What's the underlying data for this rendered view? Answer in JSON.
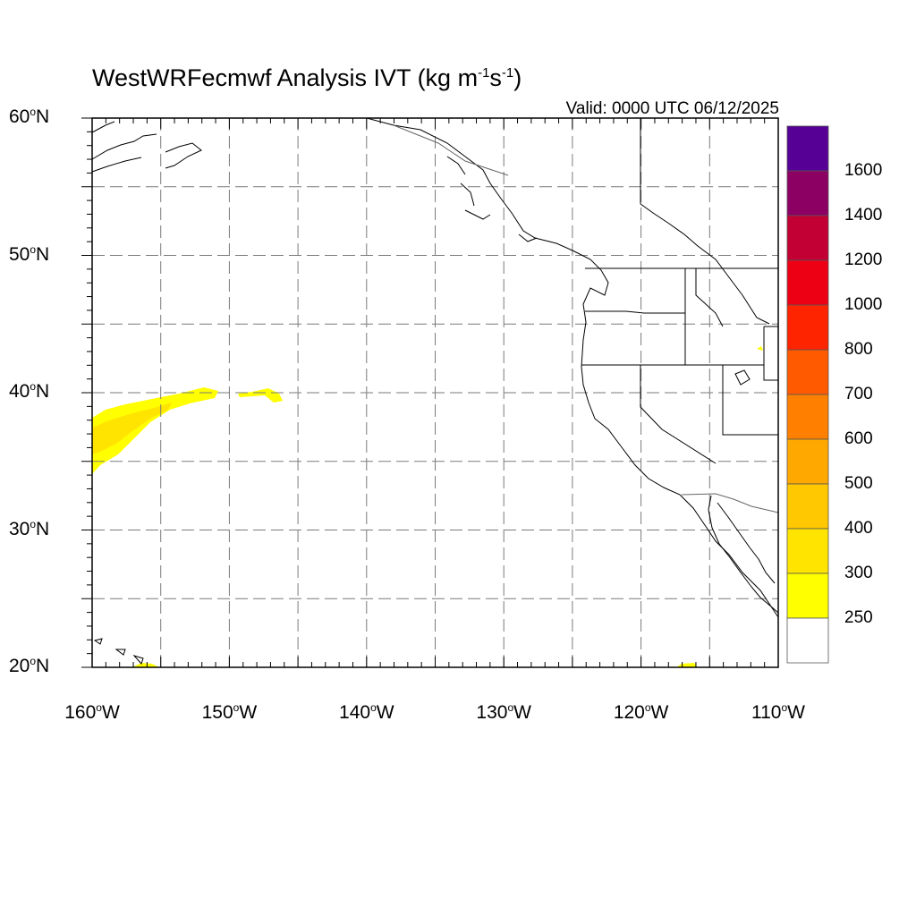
{
  "title": {
    "text": "WestWRFecmwf Analysis IVT (kg m",
    "sup1": "-1",
    "mid": "s",
    "sup2": "-1",
    "end": ")"
  },
  "valid_text": "Valid: 0000 UTC 06/12/2025",
  "map": {
    "lon_range": [
      -160,
      -110
    ],
    "lat_range": [
      20,
      60
    ],
    "grid_lon_step": 5,
    "grid_lat_step": 5,
    "grid_style": "dashed",
    "lat_labels": [
      {
        "value": 60,
        "text": "60",
        "hemi": "N"
      },
      {
        "value": 50,
        "text": "50",
        "hemi": "N"
      },
      {
        "value": 40,
        "text": "40",
        "hemi": "N"
      },
      {
        "value": 30,
        "text": "30",
        "hemi": "N"
      },
      {
        "value": 20,
        "text": "20",
        "hemi": "N"
      }
    ],
    "lon_labels": [
      {
        "value": -160,
        "text": "160",
        "hemi": "W"
      },
      {
        "value": -150,
        "text": "150",
        "hemi": "W"
      },
      {
        "value": -140,
        "text": "140",
        "hemi": "W"
      },
      {
        "value": -130,
        "text": "130",
        "hemi": "W"
      },
      {
        "value": -120,
        "text": "120",
        "hemi": "W"
      },
      {
        "value": -110,
        "text": "110",
        "hemi": "W"
      }
    ]
  },
  "colorbar": {
    "levels": [
      "1600",
      "1400",
      "1200",
      "1000",
      "800",
      "700",
      "600",
      "500",
      "400",
      "300",
      "250"
    ],
    "colors_top_to_bottom": [
      "#560096",
      "#8c0064",
      "#c20034",
      "#ee0014",
      "#ff2400",
      "#ff5a00",
      "#ff8000",
      "#ffa800",
      "#ffc800",
      "#ffe400",
      "#ffff00",
      "#ffffff"
    ]
  },
  "colors": {
    "ivt_250": "#ffff00",
    "ivt_300": "#ffe400",
    "coast": "#000000",
    "grid": "#7a7a7a"
  }
}
